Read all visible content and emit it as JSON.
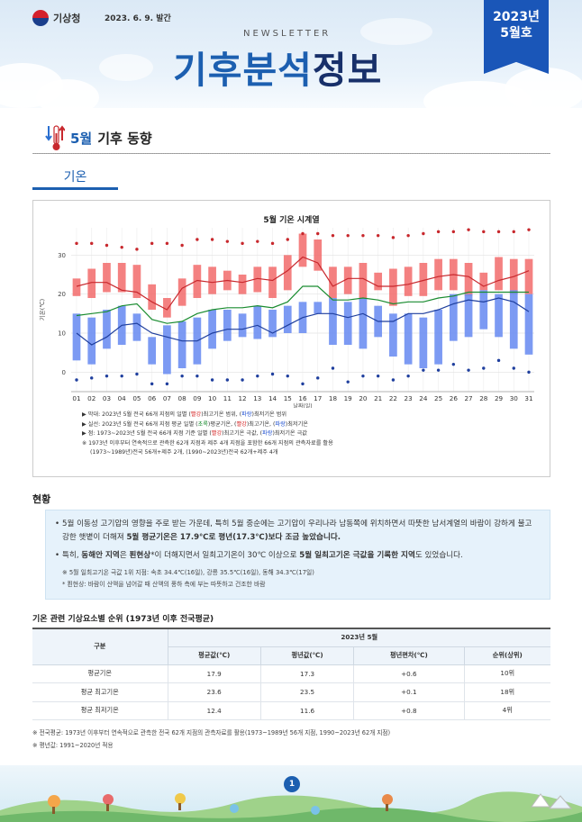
{
  "header": {
    "agency": "기상청",
    "issue_date": "2023. 6. 9. 발간",
    "newsletter": "NEWSLETTER",
    "title_part1": "기후분석",
    "title_part2": "정보",
    "issue_year": "2023년",
    "issue_month": "5월호"
  },
  "section": {
    "title_highlight": "5월",
    "title_rest": "기후 동향"
  },
  "subtab": {
    "label": "기온"
  },
  "chart_data": {
    "type": "bar",
    "title": "5월 기온 시계열",
    "ylabel": "기온(℃)",
    "xlabel": "날짜(일)",
    "ylim": [
      -5,
      37
    ],
    "yticks": [
      0,
      10,
      20,
      30
    ],
    "categories": [
      "01",
      "02",
      "03",
      "04",
      "05",
      "06",
      "07",
      "08",
      "09",
      "10",
      "11",
      "12",
      "13",
      "14",
      "15",
      "16",
      "17",
      "18",
      "19",
      "20",
      "21",
      "22",
      "23",
      "24",
      "25",
      "26",
      "27",
      "28",
      "29",
      "30",
      "31"
    ],
    "series": [
      {
        "name": "평년 최고기온 범위",
        "color": "#f26b6b",
        "low": [
          19.5,
          19,
          20.5,
          20.5,
          19,
          16,
          14,
          17,
          19,
          20,
          21,
          20,
          20.5,
          19,
          21,
          27,
          26,
          19,
          20,
          19,
          21,
          17,
          19.5,
          19.5,
          21,
          21,
          19.5,
          21,
          21,
          20,
          20
        ],
        "high": [
          24,
          26.5,
          28,
          28,
          27.5,
          22.5,
          19,
          24,
          27.5,
          27,
          26,
          25,
          27,
          27,
          30,
          35.5,
          34,
          27,
          27,
          28,
          25.5,
          26.5,
          27,
          28,
          29,
          29,
          28,
          25.5,
          29.5,
          29,
          29
        ]
      },
      {
        "name": "평년 최저기온 범위",
        "color": "#6e8ff2",
        "low": [
          3,
          2,
          6,
          7,
          8,
          2,
          -0.5,
          1,
          2,
          6,
          8,
          9,
          8.5,
          9,
          10,
          10,
          15,
          7,
          7,
          6,
          9,
          4,
          2,
          1,
          2,
          8,
          9,
          11,
          9,
          6,
          4.5
        ],
        "high": [
          15,
          14,
          16,
          17,
          15,
          9,
          12,
          13,
          14,
          16,
          16,
          15,
          17,
          16,
          17,
          18,
          18,
          19,
          18,
          19,
          17,
          15,
          15,
          14,
          16,
          20,
          20,
          21,
          20,
          21,
          20
        ]
      },
      {
        "name": "평균기온",
        "color": "#1a8c30",
        "values": [
          14.5,
          15,
          15.5,
          17,
          17.5,
          13.5,
          12.5,
          13,
          15,
          16,
          16.5,
          16.5,
          17,
          16.5,
          18,
          22,
          22,
          18.5,
          18.5,
          19,
          18.5,
          17.5,
          18,
          18,
          19,
          19.5,
          20.5,
          20.5,
          20.5,
          20.5,
          20.5
        ]
      },
      {
        "name": "최고기온",
        "color": "#c8282d",
        "values": [
          22,
          23,
          23,
          21,
          20.5,
          18,
          16,
          21.5,
          23.5,
          23,
          23.5,
          23,
          24,
          23.5,
          26,
          29.5,
          28,
          22,
          24,
          24,
          22,
          22,
          22.5,
          23.5,
          24.5,
          25,
          24.5,
          22,
          23.5,
          24.5,
          26
        ]
      },
      {
        "name": "최저기온",
        "color": "#1f3f9e",
        "values": [
          10,
          7,
          9,
          12,
          12.5,
          10,
          9,
          8,
          8,
          10,
          11,
          11,
          12,
          10,
          12,
          14,
          15,
          15,
          14,
          15,
          13,
          13,
          15,
          15,
          16,
          17.5,
          18.5,
          18,
          19,
          18,
          15.5
        ]
      },
      {
        "name": "최고기온 극값",
        "color": "#c8282d",
        "values": [
          33,
          33,
          32.5,
          32,
          31.5,
          33,
          33,
          32.5,
          34,
          34,
          33.5,
          33,
          33.5,
          33,
          34,
          35.5,
          35.5,
          35,
          35,
          35,
          35,
          34.5,
          35,
          35.5,
          36,
          36,
          36.5,
          36,
          36,
          36,
          36.5
        ]
      },
      {
        "name": "최저기온 극값",
        "color": "#1f3f9e",
        "values": [
          -2,
          -1.5,
          -1,
          -1,
          -0.5,
          -3,
          -3,
          -1,
          -1,
          -2,
          -2,
          -2,
          -1,
          -0.5,
          -1,
          -3,
          -1.5,
          1,
          -2.5,
          -1,
          -1,
          -2,
          -1,
          0.5,
          0.5,
          2,
          0.5,
          1,
          3,
          1,
          0
        ]
      }
    ]
  },
  "legend": {
    "line1_a": "▶ 막대: 2023년 5월 전국 66개 지점의 일별 (",
    "line1_r": "빨강",
    "line1_b": ")최고기온 범위, (",
    "line1_c": "파랑",
    "line1_d": ")최저기온 범위",
    "line2_a": "▶ 실선: 2023년 5월 전국 66개 지점 평균 일별 (",
    "line2_g": "초록",
    "line2_b": ")평균기온, (",
    "line2_r": "빨강",
    "line2_c": ")최고기온, (",
    "line2_bl": "파랑",
    "line2_d": ")최저기온",
    "line3_a": "▶ 점: 1973~2023년 5월 전국 66개 지점 기준 일별 (",
    "line3_r": "빨강",
    "line3_b": ")최고기온 극값, (",
    "line3_bl": "파랑",
    "line3_c": ")최저기온 극값",
    "line4": "※ 1973년 이후부터 연속적으로 관측한 62개 지점과 제주 4개 지점을 포함한 66개 지점의 관측자료를 활용",
    "line5": "(1973~1989년)전국 56개+제주 2개, (1990~2023년)전국 62개+제주 4개"
  },
  "current": {
    "heading": "현황",
    "p1_a": "5월 이동성 고기압의 영향을 주로 받는 가운데, 특히 5월 중순에는 고기압이 우리나라 남동쪽에 위치하면서 따뜻한 남서계열의 바람이 강하게 불고 강한 햇볕이 더해져 ",
    "p1_b": "5월 평균기온은 17.9℃로 평년(17.3℃)보다 조금 높았습니다.",
    "p2_a": "특히, ",
    "p2_b": "동해안 지역",
    "p2_c": "은 ",
    "p2_d": "푄현상",
    "p2_e": "*이 더해지면서 일최고기온이 30℃ 이상으로 ",
    "p2_f": "5월 일최고기온 극값을 기록한 지역",
    "p2_g": "도 있었습니다.",
    "note1": "※ 5월 일최고기온 극값 1위 지점: 속초 34.4℃(16일), 강릉 35.5℃(16일), 동해 34.3℃(17일)",
    "note2": "* 푄현상: 바람이 산맥을 넘어갈 때 산맥의 풍하 측에 부는 따뜻하고 건조한 바람"
  },
  "table": {
    "title": "기온 관련 기상요소별 순위 (1973년 이후 전국평균)",
    "col_group": "구분",
    "period": "2023년 5월",
    "headers": [
      "평균값(℃)",
      "평년값(℃)",
      "평년편차(℃)",
      "순위(상위)"
    ],
    "rows": [
      {
        "label": "평균기온",
        "values": [
          "17.9",
          "17.3",
          "+0.6",
          "10위"
        ]
      },
      {
        "label": "평균 최고기온",
        "values": [
          "23.6",
          "23.5",
          "+0.1",
          "18위"
        ]
      },
      {
        "label": "평균 최저기온",
        "values": [
          "12.4",
          "11.6",
          "+0.8",
          "4위"
        ]
      }
    ]
  },
  "footnotes": {
    "n1": "※ 전국평균: 1973년 이후부터 연속적으로 관측한 전국 62개 지점의 관측자료를 활용(1973~1989년 56개 지점, 1990~2023년 62개 지점)",
    "n2": "※ 평년값: 1991~2020년 적용"
  },
  "page": {
    "number": "1"
  }
}
